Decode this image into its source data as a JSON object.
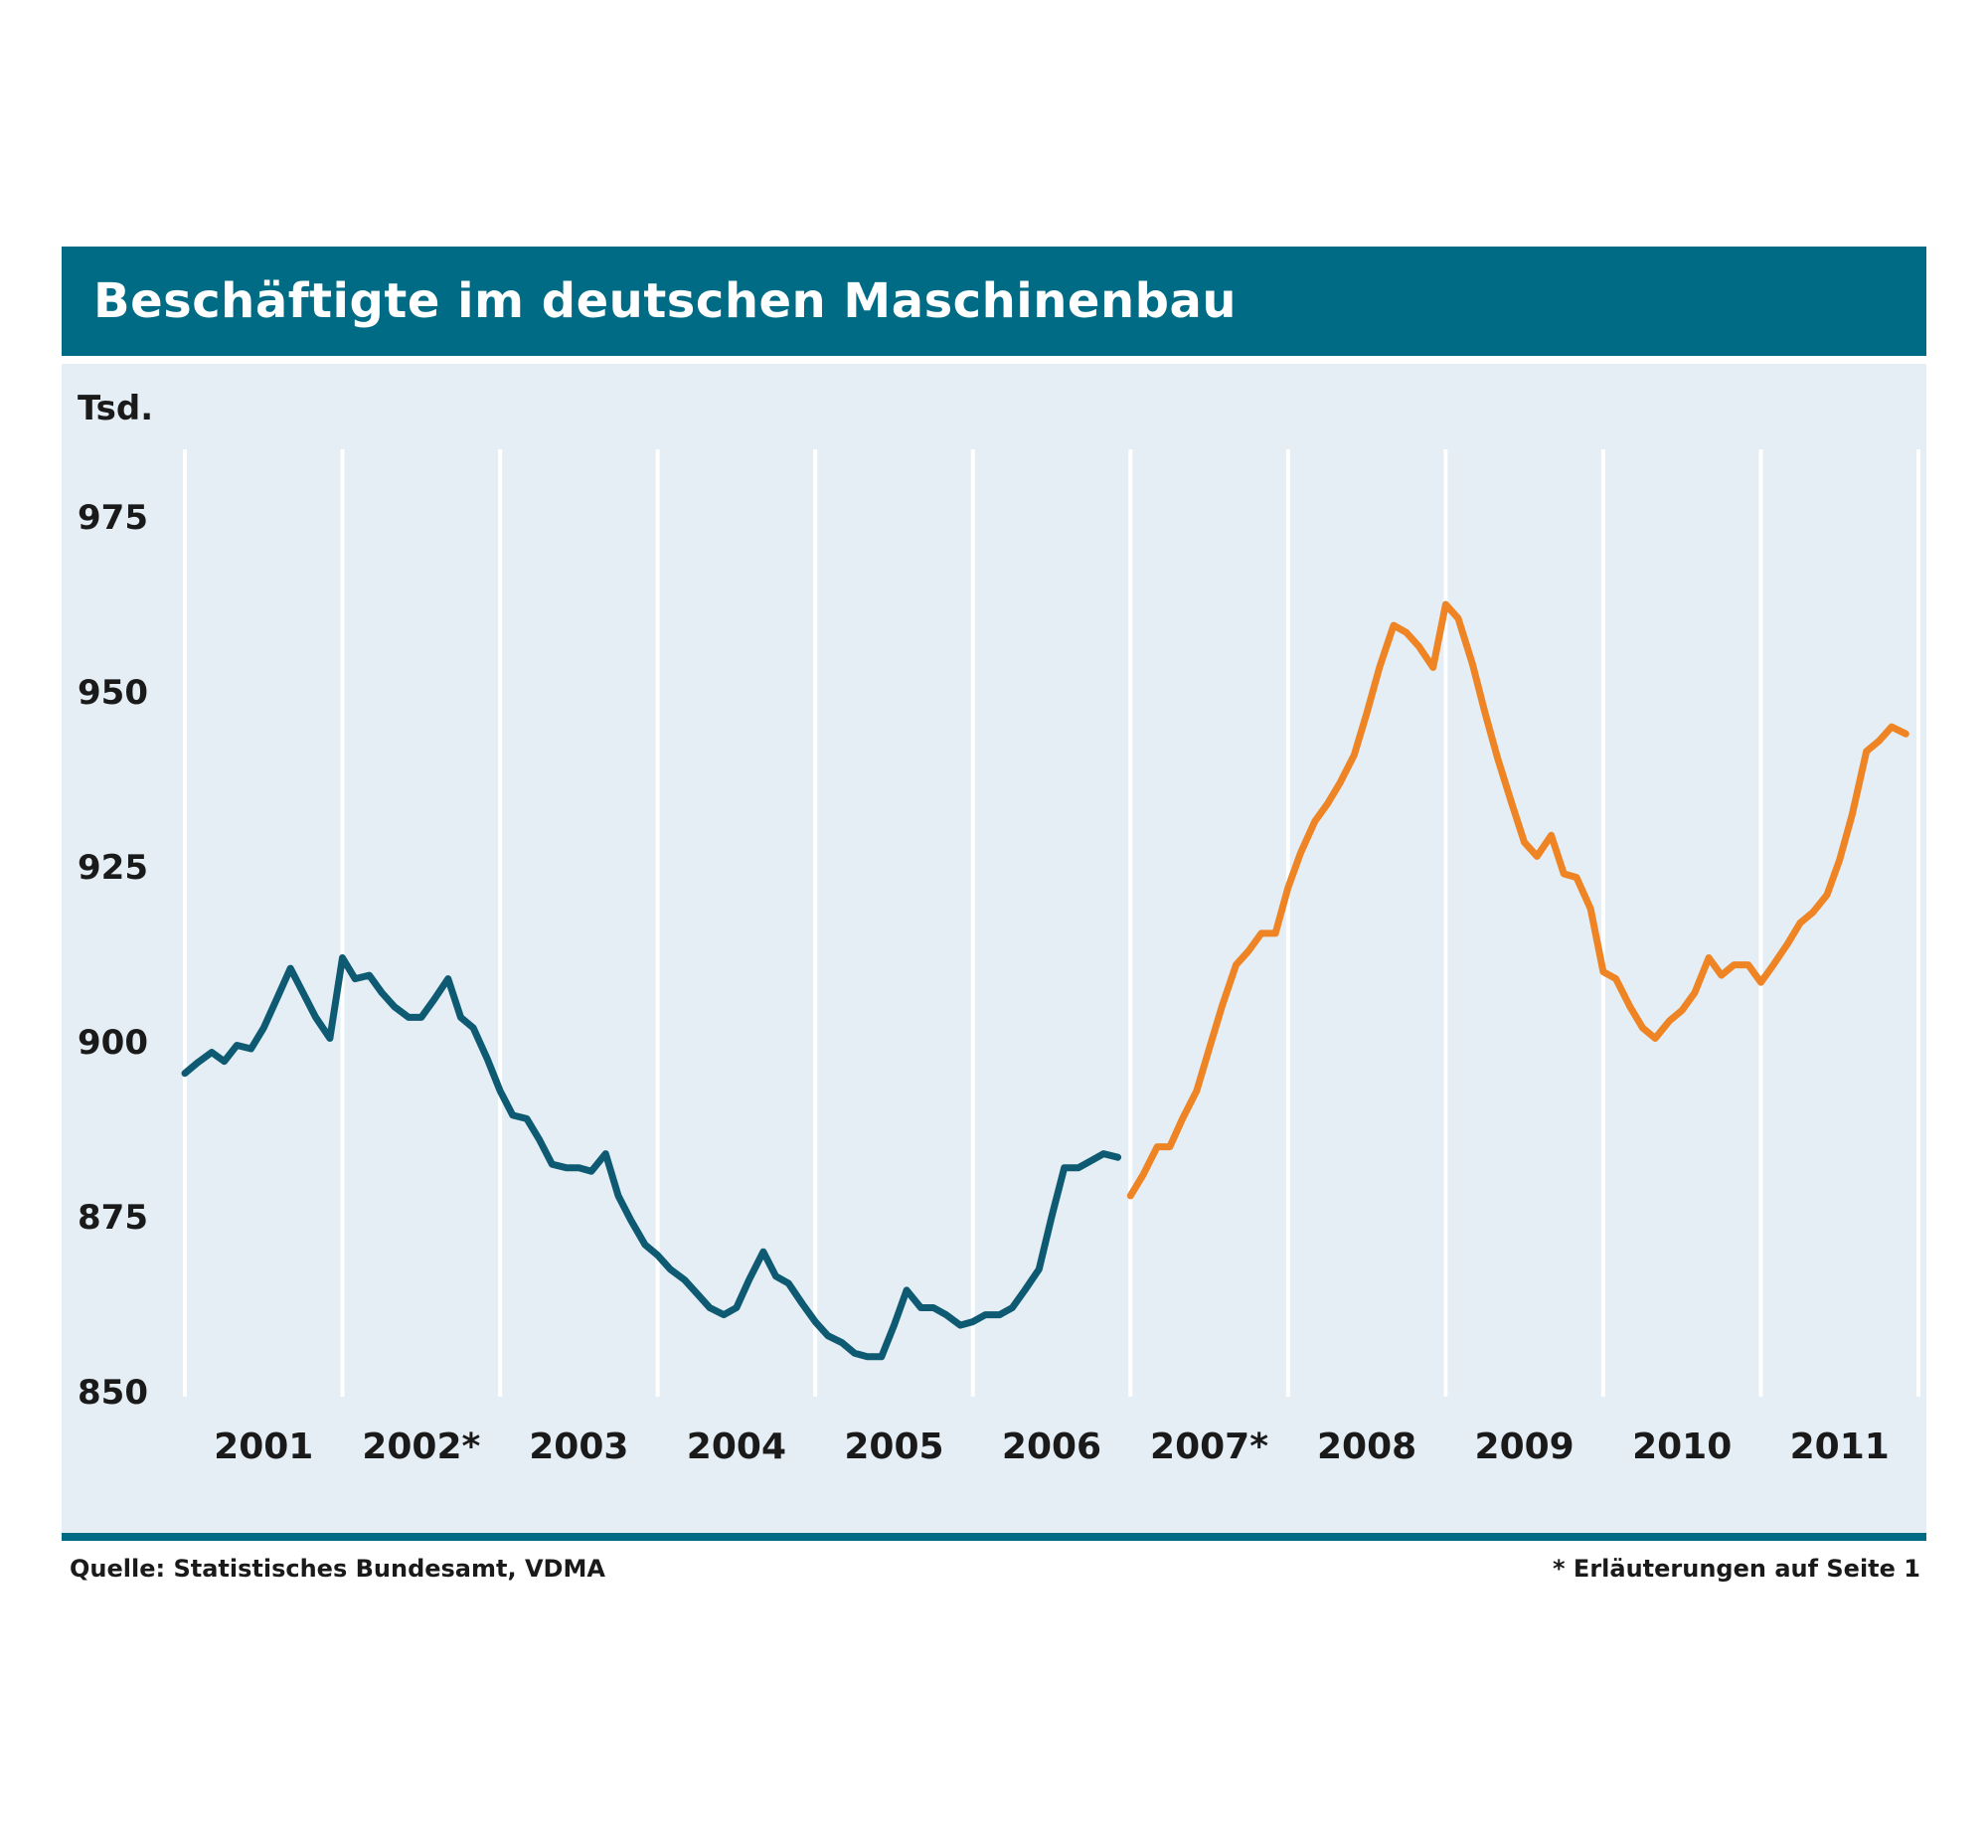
{
  "title": "Beschäftigte im deutschen Maschinenbau",
  "source": "Quelle: Statistisches Bundesamt, VDMA",
  "footnote": "* Erläuterungen auf Seite 1",
  "colors": {
    "header": "#006b84",
    "plot_background": "#e4eef4",
    "series_2001_2006": "#0e5a73",
    "series_2007_2011": "#ee8424",
    "gridline": "#ffffff"
  },
  "chart_data": {
    "type": "line",
    "ylabel": "Tsd.",
    "ylim": [
      850,
      982
    ],
    "yticks": [
      850,
      875,
      900,
      925,
      950,
      975
    ],
    "categories": [
      "2001",
      "2002*",
      "2003",
      "2004",
      "2005",
      "2006",
      "2007*",
      "2008",
      "2009",
      "2010",
      "2011"
    ],
    "xlim": [
      2001,
      2012
    ],
    "grid": "vertical lines at year boundaries",
    "series": [
      {
        "segment": "2001–2006",
        "color": "#0e5a73",
        "points": [
          [
            2001.0,
            895.5
          ],
          [
            2001.08,
            897.0
          ],
          [
            2001.17,
            898.5
          ],
          [
            2001.25,
            897.2
          ],
          [
            2001.33,
            899.5
          ],
          [
            2001.42,
            899.0
          ],
          [
            2001.5,
            902.0
          ],
          [
            2001.58,
            906.0
          ],
          [
            2001.67,
            910.5
          ],
          [
            2001.75,
            907.0
          ],
          [
            2001.83,
            903.5
          ],
          [
            2001.92,
            900.5
          ],
          [
            2002.0,
            912.0
          ],
          [
            2002.08,
            909.0
          ],
          [
            2002.17,
            909.5
          ],
          [
            2002.25,
            907.0
          ],
          [
            2002.33,
            905.0
          ],
          [
            2002.42,
            903.5
          ],
          [
            2002.5,
            903.5
          ],
          [
            2002.58,
            906.0
          ],
          [
            2002.67,
            909.0
          ],
          [
            2002.75,
            903.5
          ],
          [
            2002.83,
            902.0
          ],
          [
            2002.92,
            897.5
          ],
          [
            2003.0,
            893.0
          ],
          [
            2003.08,
            889.5
          ],
          [
            2003.17,
            889.0
          ],
          [
            2003.25,
            886.0
          ],
          [
            2003.33,
            882.5
          ],
          [
            2003.42,
            882.0
          ],
          [
            2003.5,
            882.0
          ],
          [
            2003.58,
            881.5
          ],
          [
            2003.67,
            884.0
          ],
          [
            2003.75,
            878.0
          ],
          [
            2003.83,
            874.5
          ],
          [
            2003.92,
            871.0
          ],
          [
            2004.0,
            869.5
          ],
          [
            2004.08,
            867.5
          ],
          [
            2004.17,
            866.0
          ],
          [
            2004.25,
            864.0
          ],
          [
            2004.33,
            862.0
          ],
          [
            2004.42,
            861.0
          ],
          [
            2004.5,
            862.0
          ],
          [
            2004.58,
            866.0
          ],
          [
            2004.67,
            870.0
          ],
          [
            2004.75,
            866.5
          ],
          [
            2004.83,
            865.5
          ],
          [
            2004.92,
            862.5
          ],
          [
            2005.0,
            860.0
          ],
          [
            2005.08,
            858.0
          ],
          [
            2005.17,
            857.0
          ],
          [
            2005.25,
            855.5
          ],
          [
            2005.33,
            855.0
          ],
          [
            2005.42,
            855.0
          ],
          [
            2005.5,
            859.5
          ],
          [
            2005.58,
            864.5
          ],
          [
            2005.67,
            862.0
          ],
          [
            2005.75,
            862.0
          ],
          [
            2005.83,
            861.0
          ],
          [
            2005.92,
            859.5
          ],
          [
            2006.0,
            860.0
          ],
          [
            2006.08,
            861.0
          ],
          [
            2006.17,
            861.0
          ],
          [
            2006.25,
            862.0
          ],
          [
            2006.33,
            864.5
          ],
          [
            2006.42,
            867.5
          ],
          [
            2006.5,
            875.0
          ],
          [
            2006.58,
            882.0
          ],
          [
            2006.67,
            882.0
          ],
          [
            2006.75,
            883.0
          ],
          [
            2006.83,
            884.0
          ],
          [
            2006.92,
            883.5
          ]
        ]
      },
      {
        "segment": "2007–2011",
        "color": "#ee8424",
        "points": [
          [
            2007.0,
            878.0
          ],
          [
            2007.08,
            881.0
          ],
          [
            2007.17,
            885.0
          ],
          [
            2007.25,
            885.0
          ],
          [
            2007.33,
            889.0
          ],
          [
            2007.42,
            893.0
          ],
          [
            2007.5,
            899.0
          ],
          [
            2007.58,
            905.0
          ],
          [
            2007.67,
            911.0
          ],
          [
            2007.75,
            913.0
          ],
          [
            2007.83,
            915.5
          ],
          [
            2007.92,
            915.5
          ],
          [
            2008.0,
            922.0
          ],
          [
            2008.08,
            927.0
          ],
          [
            2008.17,
            931.5
          ],
          [
            2008.25,
            934.0
          ],
          [
            2008.33,
            937.0
          ],
          [
            2008.42,
            941.0
          ],
          [
            2008.5,
            947.0
          ],
          [
            2008.58,
            953.5
          ],
          [
            2008.67,
            959.5
          ],
          [
            2008.75,
            958.5
          ],
          [
            2008.83,
            956.5
          ],
          [
            2008.92,
            953.5
          ],
          [
            2009.0,
            962.5
          ],
          [
            2009.08,
            960.5
          ],
          [
            2009.17,
            954.0
          ],
          [
            2009.25,
            947.0
          ],
          [
            2009.33,
            940.5
          ],
          [
            2009.42,
            934.0
          ],
          [
            2009.5,
            928.5
          ],
          [
            2009.58,
            926.5
          ],
          [
            2009.67,
            929.5
          ],
          [
            2009.75,
            924.0
          ],
          [
            2009.83,
            923.5
          ],
          [
            2009.92,
            919.0
          ],
          [
            2010.0,
            910.0
          ],
          [
            2010.08,
            909.0
          ],
          [
            2010.17,
            905.0
          ],
          [
            2010.25,
            902.0
          ],
          [
            2010.33,
            900.5
          ],
          [
            2010.42,
            903.0
          ],
          [
            2010.5,
            904.5
          ],
          [
            2010.58,
            907.0
          ],
          [
            2010.67,
            912.0
          ],
          [
            2010.75,
            909.5
          ],
          [
            2010.83,
            911.0
          ],
          [
            2010.92,
            911.0
          ],
          [
            2011.0,
            908.5
          ],
          [
            2011.08,
            911.0
          ],
          [
            2011.17,
            914.0
          ],
          [
            2011.25,
            917.0
          ],
          [
            2011.33,
            918.5
          ],
          [
            2011.42,
            921.0
          ],
          [
            2011.5,
            926.0
          ],
          [
            2011.58,
            932.5
          ],
          [
            2011.67,
            941.5
          ],
          [
            2011.75,
            943.0
          ],
          [
            2011.83,
            945.0
          ],
          [
            2011.92,
            944.0
          ]
        ]
      }
    ]
  }
}
